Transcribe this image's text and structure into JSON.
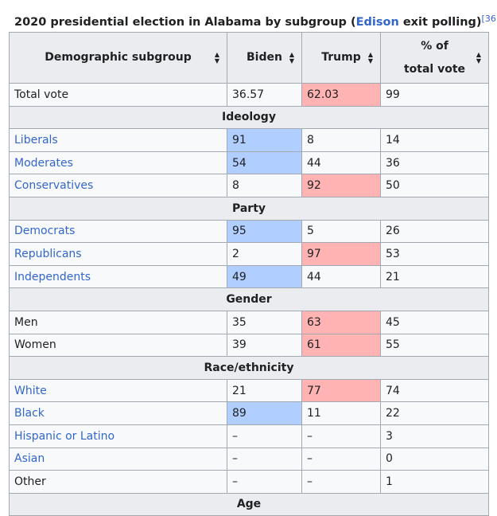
{
  "caption": {
    "before": "2020 presidential election in Alabama by subgroup (",
    "link": "Edison",
    "after": " exit polling)",
    "ref": "[36]"
  },
  "headers": {
    "subgroup": "Demographic subgroup",
    "biden": "Biden",
    "trump": "Trump",
    "pct_line1": "% of",
    "pct_line2": "total vote"
  },
  "colors": {
    "biden_win": "#b0ceff",
    "trump_win": "#ffb3b3",
    "link": "#3366cc",
    "header_bg": "#eaecf0"
  },
  "total": {
    "label": "Total vote",
    "biden": "36.57",
    "trump": "62.03",
    "pct": "99"
  },
  "sections": [
    {
      "title": "Ideology",
      "rows": [
        {
          "label": "Liberals",
          "biden": "91",
          "trump": "8",
          "pct": "14"
        },
        {
          "label": "Moderates",
          "biden": "54",
          "trump": "44",
          "pct": "36"
        },
        {
          "label": "Conservatives",
          "biden": "8",
          "trump": "92",
          "pct": "50"
        }
      ]
    },
    {
      "title": "Party",
      "rows": [
        {
          "label": "Democrats",
          "biden": "95",
          "trump": "5",
          "pct": "26"
        },
        {
          "label": "Republicans",
          "biden": "2",
          "trump": "97",
          "pct": "53"
        },
        {
          "label": "Independents",
          "biden": "49",
          "trump": "44",
          "pct": "21"
        }
      ]
    },
    {
      "title": "Gender",
      "rows": [
        {
          "label": "Men",
          "biden": "35",
          "trump": "63",
          "pct": "45"
        },
        {
          "label": "Women",
          "biden": "39",
          "trump": "61",
          "pct": "55"
        }
      ]
    },
    {
      "title": "Race/ethnicity",
      "rows": [
        {
          "label": "White",
          "biden": "21",
          "trump": "77",
          "pct": "74"
        },
        {
          "label": "Black",
          "biden": "89",
          "trump": "11",
          "pct": "22"
        },
        {
          "label": "Hispanic or Latino",
          "biden": "–",
          "trump": "–",
          "pct": "3"
        },
        {
          "label": "Asian",
          "biden": "–",
          "trump": "–",
          "pct": "0"
        },
        {
          "label": "Other",
          "biden": "–",
          "trump": "–",
          "pct": "1"
        }
      ]
    },
    {
      "title": "Age",
      "rows": []
    }
  ]
}
